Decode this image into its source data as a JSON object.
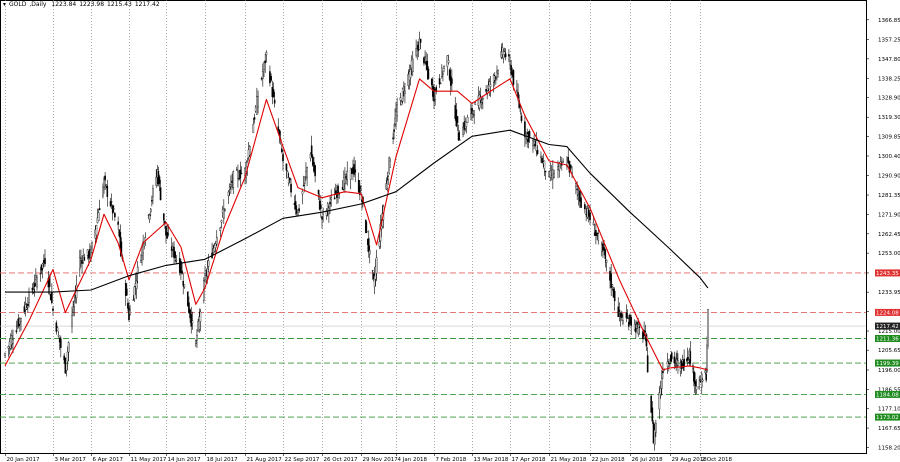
{
  "chart_data": {
    "type": "candlestick",
    "symbol": "GOLD",
    "timeframe": "Daily",
    "ohlc_header": [
      "1223.84",
      "1223.98",
      "1215.43",
      "1217.42"
    ],
    "current_price": 1217.42,
    "price_tag": "1217.42",
    "grid": "vertical dotted",
    "y_ticks": [
      1158.2,
      1167.65,
      1177.1,
      1186.55,
      1196.0,
      1205.65,
      1215.0,
      1224.45,
      1233.95,
      1243.35,
      1253.0,
      1262.45,
      1271.9,
      1281.35,
      1290.9,
      1300.4,
      1309.85,
      1319.3,
      1328.9,
      1338.25,
      1347.8,
      1357.25,
      1366.85
    ],
    "y_tick_labels": [
      "1158.20",
      "1167.65",
      "1177.10",
      "1186.55",
      "1196.00",
      "1205.65",
      "1215.00",
      "1224.45",
      "1233.95",
      "1243.35",
      "1253.00",
      "1262.45",
      "1271.90",
      "1281.35",
      "1290.90",
      "1300.40",
      "1309.85",
      "1319.30",
      "1328.90",
      "1338.25",
      "1347.80",
      "1357.25",
      "1366.85"
    ],
    "ylim": [
      1155.5,
      1376.5
    ],
    "x_tick_labels": [
      "20 Jan 2017",
      "3 Mar 2017",
      "6 Apr 2017",
      "11 May 2017",
      "14 Jun 2017",
      "18 Jul 2017",
      "21 Aug 2017",
      "22 Sep 2017",
      "26 Oct 2017",
      "29 Nov 2017",
      "4 Jan 2018",
      "7 Feb 2018",
      "13 Mar 2018",
      "17 Apr 2018",
      "21 May 2018",
      "22 Jun 2018",
      "26 Jul 2018",
      "29 Aug 2018",
      "2 Oct 2018"
    ],
    "levels": [
      {
        "price": 1243.35,
        "label": "1243.35",
        "line_color": "#e06666",
        "tag_color": "#e03030"
      },
      {
        "price": 1224.08,
        "label": "1224.08",
        "line_color": "#e06666",
        "tag_color": "#e03030"
      },
      {
        "price": 1211.36,
        "label": "1211.36",
        "line_color": "#3a9a3a",
        "tag_color": "#1e8c1e"
      },
      {
        "price": 1199.39,
        "label": "1199.39",
        "line_color": "#3a9a3a",
        "tag_color": "#1e8c1e"
      },
      {
        "price": 1184.08,
        "label": "1184.08",
        "line_color": "#3a9a3a",
        "tag_color": "#1e8c1e"
      },
      {
        "price": 1173.02,
        "label": "1173.02",
        "line_color": "#3a9a3a",
        "tag_color": "#1e8c1e"
      }
    ],
    "close_path": [
      {
        "date": "20 Jan 2017",
        "close": 1204
      },
      {
        "date": "3 Feb 2017",
        "close": 1222
      },
      {
        "date": "24 Feb 2017",
        "close": 1250
      },
      {
        "date": "3 Mar 2017",
        "close": 1225
      },
      {
        "date": "14 Mar 2017",
        "close": 1197
      },
      {
        "date": "27 Mar 2017",
        "close": 1250
      },
      {
        "date": "6 Apr 2017",
        "close": 1253
      },
      {
        "date": "18 Apr 2017",
        "close": 1288
      },
      {
        "date": "1 May 2017",
        "close": 1265
      },
      {
        "date": "11 May 2017",
        "close": 1222
      },
      {
        "date": "24 May 2017",
        "close": 1258
      },
      {
        "date": "6 Jun 2017",
        "close": 1293
      },
      {
        "date": "14 Jun 2017",
        "close": 1262
      },
      {
        "date": "27 Jun 2017",
        "close": 1245
      },
      {
        "date": "10 Jul 2017",
        "close": 1209
      },
      {
        "date": "18 Jul 2017",
        "close": 1241
      },
      {
        "date": "31 Jul 2017",
        "close": 1268
      },
      {
        "date": "11 Aug 2017",
        "close": 1290
      },
      {
        "date": "21 Aug 2017",
        "close": 1293
      },
      {
        "date": "1 Sep 2017",
        "close": 1330
      },
      {
        "date": "8 Sep 2017",
        "close": 1350
      },
      {
        "date": "22 Sep 2017",
        "close": 1298
      },
      {
        "date": "5 Oct 2017",
        "close": 1272
      },
      {
        "date": "16 Oct 2017",
        "close": 1303
      },
      {
        "date": "26 Oct 2017",
        "close": 1270
      },
      {
        "date": "8 Nov 2017",
        "close": 1283
      },
      {
        "date": "22 Nov 2017",
        "close": 1294
      },
      {
        "date": "29 Nov 2017",
        "close": 1282
      },
      {
        "date": "12 Dec 2017",
        "close": 1238
      },
      {
        "date": "22 Dec 2017",
        "close": 1276
      },
      {
        "date": "4 Jan 2018",
        "close": 1321
      },
      {
        "date": "25 Jan 2018",
        "close": 1356
      },
      {
        "date": "7 Feb 2018",
        "close": 1330
      },
      {
        "date": "19 Feb 2018",
        "close": 1348
      },
      {
        "date": "1 Mar 2018",
        "close": 1310
      },
      {
        "date": "13 Mar 2018",
        "close": 1322
      },
      {
        "date": "2 Apr 2018",
        "close": 1338
      },
      {
        "date": "11 Apr 2018",
        "close": 1352
      },
      {
        "date": "17 Apr 2018",
        "close": 1345
      },
      {
        "date": "30 Apr 2018",
        "close": 1312
      },
      {
        "date": "10 May 2018",
        "close": 1305
      },
      {
        "date": "21 May 2018",
        "close": 1290
      },
      {
        "date": "4 Jun 2018",
        "close": 1298
      },
      {
        "date": "15 Jun 2018",
        "close": 1278
      },
      {
        "date": "22 Jun 2018",
        "close": 1270
      },
      {
        "date": "4 Jul 2018",
        "close": 1252
      },
      {
        "date": "17 Jul 2018",
        "close": 1222
      },
      {
        "date": "26 Jul 2018",
        "close": 1220
      },
      {
        "date": "8 Aug 2018",
        "close": 1212
      },
      {
        "date": "15 Aug 2018",
        "close": 1162
      },
      {
        "date": "23 Aug 2018",
        "close": 1197
      },
      {
        "date": "29 Aug 2018",
        "close": 1202
      },
      {
        "date": "10 Sep 2018",
        "close": 1198
      },
      {
        "date": "20 Sep 2018",
        "close": 1204
      },
      {
        "date": "28 Sep 2018",
        "close": 1187
      },
      {
        "date": "2 Oct 2018",
        "close": 1190
      },
      {
        "date": "9 Oct 2018",
        "close": 1194
      },
      {
        "date": "11 Oct 2018",
        "close": 1224
      }
    ],
    "series": [
      {
        "color": "#e00000",
        "points": [
          {
            "date": "20 Jan 2017",
            "value": 1198
          },
          {
            "date": "10 Feb 2017",
            "value": 1220
          },
          {
            "date": "3 Mar 2017",
            "value": 1245
          },
          {
            "date": "14 Mar 2017",
            "value": 1224
          },
          {
            "date": "6 Apr 2017",
            "value": 1250
          },
          {
            "date": "18 Apr 2017",
            "value": 1272
          },
          {
            "date": "1 May 2017",
            "value": 1258
          },
          {
            "date": "11 May 2017",
            "value": 1240
          },
          {
            "date": "24 May 2017",
            "value": 1258
          },
          {
            "date": "14 Jun 2017",
            "value": 1268
          },
          {
            "date": "27 Jun 2017",
            "value": 1256
          },
          {
            "date": "10 Jul 2017",
            "value": 1228
          },
          {
            "date": "18 Jul 2017",
            "value": 1236
          },
          {
            "date": "3 Aug 2017",
            "value": 1265
          },
          {
            "date": "21 Aug 2017",
            "value": 1290
          },
          {
            "date": "8 Sep 2017",
            "value": 1328
          },
          {
            "date": "22 Sep 2017",
            "value": 1305
          },
          {
            "date": "5 Oct 2017",
            "value": 1285
          },
          {
            "date": "26 Oct 2017",
            "value": 1280
          },
          {
            "date": "15 Nov 2017",
            "value": 1283
          },
          {
            "date": "29 Nov 2017",
            "value": 1282
          },
          {
            "date": "15 Dec 2017",
            "value": 1257
          },
          {
            "date": "4 Jan 2018",
            "value": 1300
          },
          {
            "date": "25 Jan 2018",
            "value": 1338
          },
          {
            "date": "7 Feb 2018",
            "value": 1332
          },
          {
            "date": "28 Feb 2018",
            "value": 1332
          },
          {
            "date": "13 Mar 2018",
            "value": 1326
          },
          {
            "date": "2 Apr 2018",
            "value": 1333
          },
          {
            "date": "17 Apr 2018",
            "value": 1338
          },
          {
            "date": "30 Apr 2018",
            "value": 1320
          },
          {
            "date": "21 May 2018",
            "value": 1298
          },
          {
            "date": "4 Jun 2018",
            "value": 1296
          },
          {
            "date": "22 Jun 2018",
            "value": 1275
          },
          {
            "date": "17 Jul 2018",
            "value": 1240
          },
          {
            "date": "8 Aug 2018",
            "value": 1213
          },
          {
            "date": "23 Aug 2018",
            "value": 1196
          },
          {
            "date": "29 Aug 2018",
            "value": 1197
          },
          {
            "date": "20 Sep 2018",
            "value": 1198
          },
          {
            "date": "2 Oct 2018",
            "value": 1197
          },
          {
            "date": "11 Oct 2018",
            "value": 1196
          }
        ]
      },
      {
        "color": "#000000",
        "points": [
          {
            "date": "20 Jan 2017",
            "value": 1234
          },
          {
            "date": "3 Mar 2017",
            "value": 1234
          },
          {
            "date": "6 Apr 2017",
            "value": 1235
          },
          {
            "date": "11 May 2017",
            "value": 1242
          },
          {
            "date": "14 Jun 2017",
            "value": 1247
          },
          {
            "date": "18 Jul 2017",
            "value": 1250
          },
          {
            "date": "21 Aug 2017",
            "value": 1260
          },
          {
            "date": "22 Sep 2017",
            "value": 1270
          },
          {
            "date": "26 Oct 2017",
            "value": 1273
          },
          {
            "date": "29 Nov 2017",
            "value": 1277
          },
          {
            "date": "4 Jan 2018",
            "value": 1283
          },
          {
            "date": "7 Feb 2018",
            "value": 1297
          },
          {
            "date": "13 Mar 2018",
            "value": 1310
          },
          {
            "date": "17 Apr 2018",
            "value": 1313
          },
          {
            "date": "21 May 2018",
            "value": 1306
          },
          {
            "date": "4 Jun 2018",
            "value": 1305
          },
          {
            "date": "22 Jun 2018",
            "value": 1292
          },
          {
            "date": "26 Jul 2018",
            "value": 1273
          },
          {
            "date": "29 Aug 2018",
            "value": 1255
          },
          {
            "date": "2 Oct 2018",
            "value": 1241
          },
          {
            "date": "11 Oct 2018",
            "value": 1236
          }
        ]
      }
    ]
  }
}
